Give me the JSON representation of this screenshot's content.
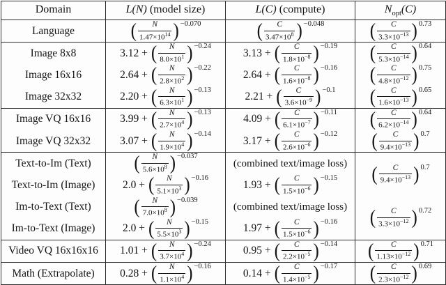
{
  "colors": {
    "ink": "#141414",
    "border": "#2b2b2b",
    "background": "#fdfdfd"
  },
  "table": {
    "headers": [
      {
        "rest": "Domain"
      },
      {
        "math": "L(N)",
        "rest": " (model size)"
      },
      {
        "math": "L(C)",
        "rest": " (compute)"
      },
      {
        "math": "N",
        "sub": "opt",
        "math2": "(C)"
      }
    ],
    "rows": [
      {
        "domain": "Language",
        "ln": {
          "num": "N",
          "den": "1.47×10",
          "den_exp": "14",
          "exp": "−0.070"
        },
        "lc": {
          "num": "C",
          "den": "3.47×10",
          "den_exp": "8",
          "exp": "−0.048"
        },
        "nopt": {
          "num": "C",
          "den": "3.3×10",
          "den_exp": "−13",
          "exp": "0.73"
        },
        "group_end": true
      },
      {
        "domain": "Image 8x8",
        "ln": {
          "prefix": "3.12 +",
          "num": "N",
          "den": "8.0×10",
          "den_exp": "1",
          "exp": "−0.24"
        },
        "lc": {
          "prefix": "3.13 +",
          "num": "C",
          "den": "1.8×10",
          "den_exp": "−8",
          "exp": "−0.19"
        },
        "nopt": {
          "num": "C",
          "den": "5.3×10",
          "den_exp": "−14",
          "exp": "0.64"
        }
      },
      {
        "domain": "Image 16x16",
        "ln": {
          "prefix": "2.64 +",
          "num": "N",
          "den": "2.8×10",
          "den_exp": "2",
          "exp": "−0.22"
        },
        "lc": {
          "prefix": "2.64 +",
          "num": "C",
          "den": "1.6×10",
          "den_exp": "−8",
          "exp": "−0.16"
        },
        "nopt": {
          "num": "C",
          "den": "4.8×10",
          "den_exp": "−12",
          "exp": "0.75"
        }
      },
      {
        "domain": "Image 32x32",
        "ln": {
          "prefix": "2.20 +",
          "num": "N",
          "den": "6.3×10",
          "den_exp": "1",
          "exp": "−0.13"
        },
        "lc": {
          "prefix": "2.21 +",
          "num": "C",
          "den": "3.6×10",
          "den_exp": "−9",
          "exp": "−0.1"
        },
        "nopt": {
          "num": "C",
          "den": "1.6×10",
          "den_exp": "−13",
          "exp": "0.65"
        },
        "group_end": true
      },
      {
        "domain": "Image VQ 16x16",
        "ln": {
          "prefix": "3.99 +",
          "num": "N",
          "den": "2.7×10",
          "den_exp": "4",
          "exp": "−0.13"
        },
        "lc": {
          "prefix": "4.09 +",
          "num": "C",
          "den": "6.1×10",
          "den_exp": "−7",
          "exp": "−0.11"
        },
        "nopt": {
          "num": "C",
          "den": "6.2×10",
          "den_exp": "−14",
          "exp": "0.64"
        }
      },
      {
        "domain": "Image VQ 32x32",
        "ln": {
          "prefix": "3.07 +",
          "num": "N",
          "den": "1.9×10",
          "den_exp": "4",
          "exp": "−0.14"
        },
        "lc": {
          "prefix": "3.17 +",
          "num": "C",
          "den": "2.6×10",
          "den_exp": "−6",
          "exp": "−0.12"
        },
        "nopt": {
          "num": "C",
          "den": "9.4×10",
          "den_exp": "−13",
          "exp": "0.7"
        },
        "group_end": true
      },
      {
        "domain": "Text-to-Im (Text)",
        "ln": {
          "num": "N",
          "den": "5.6×10",
          "den_exp": "8",
          "exp": "−0.037"
        },
        "lc": {
          "text": "(combined text/image loss)"
        },
        "nopt": {
          "num": "C",
          "den": "9.4×10",
          "den_exp": "−13",
          "exp": "0.7",
          "rowspan": 2
        }
      },
      {
        "domain": "Text-to-Im (Image)",
        "ln": {
          "prefix": "2.0 +",
          "num": "N",
          "den": "5.1×10",
          "den_exp": "3",
          "exp": "−0.16"
        },
        "lc": {
          "prefix": "1.93 +",
          "num": "C",
          "den": "1.5×10",
          "den_exp": "−6",
          "exp": "−0.15"
        }
      },
      {
        "domain": "Im-to-Text (Text)",
        "ln": {
          "num": "N",
          "den": "7.0×10",
          "den_exp": "8",
          "exp": "−0.039"
        },
        "lc": {
          "text": "(combined text/image loss)"
        },
        "nopt": {
          "num": "C",
          "den": "3.3×10",
          "den_exp": "−12",
          "exp": "0.72",
          "rowspan": 2
        }
      },
      {
        "domain": "Im-to-Text (Image)",
        "ln": {
          "prefix": "2.0 +",
          "num": "N",
          "den": "5.5×10",
          "den_exp": "3",
          "exp": "−0.15"
        },
        "lc": {
          "prefix": "1.97 +",
          "num": "C",
          "den": "1.5×10",
          "den_exp": "−6",
          "exp": "−0.16"
        },
        "group_end": true
      },
      {
        "domain": "Video VQ 16x16x16",
        "ln": {
          "prefix": "1.01 +",
          "num": "N",
          "den": "3.7×10",
          "den_exp": "4",
          "exp": "−0.24"
        },
        "lc": {
          "prefix": "0.95 +",
          "num": "C",
          "den": "2.2×10",
          "den_exp": "−5",
          "exp": "−0.14"
        },
        "nopt": {
          "num": "C",
          "den": "1.13×10",
          "den_exp": "−12",
          "exp": "0.71"
        },
        "group_end": true
      },
      {
        "domain": "Math (Extrapolate)",
        "ln": {
          "prefix": "0.28 +",
          "num": "N",
          "den": "1.1×10",
          "den_exp": "4",
          "exp": "−0.16"
        },
        "lc": {
          "prefix": "0.14 +",
          "num": "C",
          "den": "1.4×10",
          "den_exp": "−5",
          "exp": "−0.17"
        },
        "nopt": {
          "num": "C",
          "den": "2.3×10",
          "den_exp": "−12",
          "exp": "0.69"
        }
      }
    ]
  }
}
